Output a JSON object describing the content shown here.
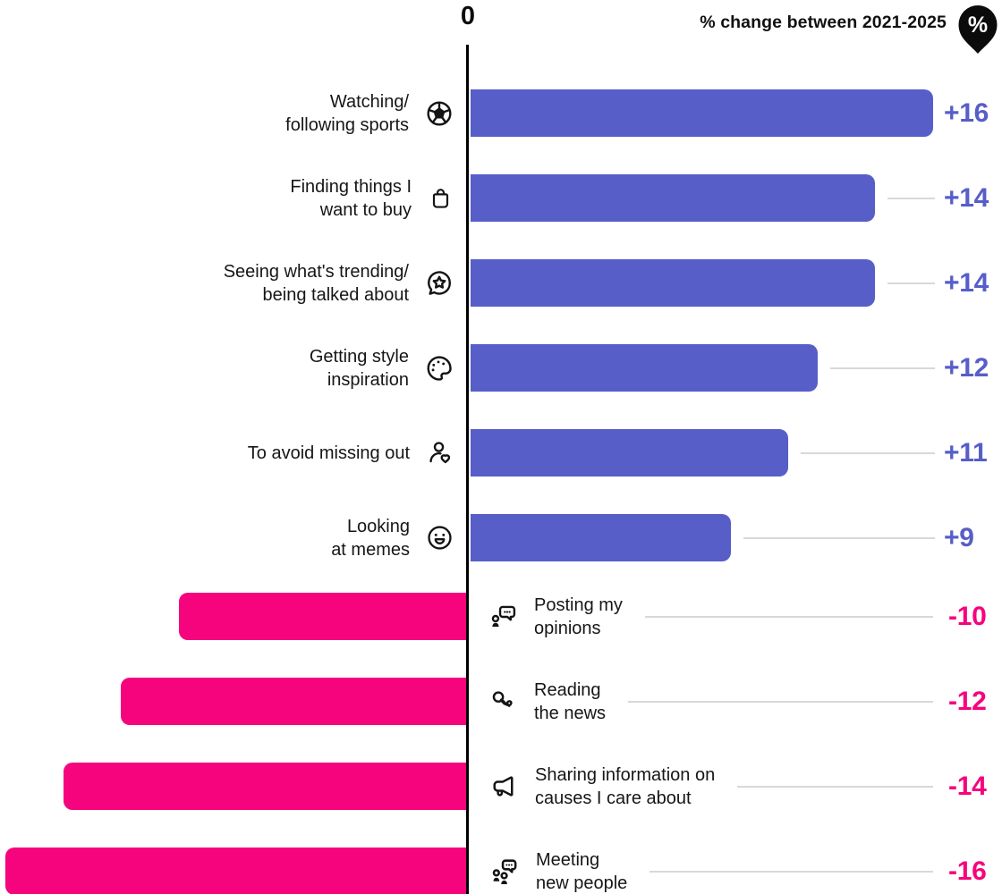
{
  "header": {
    "zero_label": "0",
    "title": "% change between 2021-2025",
    "badge_label": "%",
    "badge_icon": "percent-pin-icon"
  },
  "colors": {
    "positive": "#575EC8",
    "negative": "#F5047D",
    "axis": "#000000",
    "label_text": "#161616",
    "leader_line": "#D8D8DC"
  },
  "chart_data": {
    "type": "bar",
    "orientation": "horizontal-diverging",
    "title": "% change between 2021-2025",
    "xlabel": "",
    "ylabel": "",
    "xlim": [
      -16,
      16
    ],
    "grid": false,
    "legend": "none",
    "categories": [
      "Watching/following sports",
      "Finding things I want to buy",
      "Seeing what's trending/being talked about",
      "Getting style inspiration",
      "To avoid missing out",
      "Looking at memes",
      "Posting my opinions",
      "Reading the news",
      "Sharing information on causes I care about",
      "Meeting new people"
    ],
    "values": [
      16,
      14,
      14,
      12,
      11,
      9,
      -10,
      -12,
      -14,
      -16
    ],
    "rows": [
      {
        "label_lines": [
          "Watching/",
          "following sports"
        ],
        "icon": "soccer-ball-icon",
        "value": 16,
        "display": "+16"
      },
      {
        "label_lines": [
          "Finding things I",
          "want to buy"
        ],
        "icon": "shopping-bag-icon",
        "value": 14,
        "display": "+14"
      },
      {
        "label_lines": [
          "Seeing what's trending/",
          "being talked about"
        ],
        "icon": "star-bubble-icon",
        "value": 14,
        "display": "+14"
      },
      {
        "label_lines": [
          "Getting style",
          "inspiration"
        ],
        "icon": "palette-icon",
        "value": 12,
        "display": "+12"
      },
      {
        "label_lines": [
          "To avoid missing out"
        ],
        "icon": "person-heart-icon",
        "value": 11,
        "display": "+11"
      },
      {
        "label_lines": [
          "Looking",
          "at memes"
        ],
        "icon": "smiley-icon",
        "value": 9,
        "display": "+9"
      },
      {
        "label_lines": [
          "Posting my",
          "opinions"
        ],
        "icon": "person-speech-bubble-icon",
        "value": -10,
        "display": "-10"
      },
      {
        "label_lines": [
          "Reading",
          "the news"
        ],
        "icon": "microphone-icon",
        "value": -12,
        "display": "-12"
      },
      {
        "label_lines": [
          "Sharing information on",
          "causes I care about"
        ],
        "icon": "megaphone-icon",
        "value": -14,
        "display": "-14"
      },
      {
        "label_lines": [
          "Meeting",
          "new people"
        ],
        "icon": "people-chat-icon",
        "value": -16,
        "display": "-16"
      }
    ]
  }
}
